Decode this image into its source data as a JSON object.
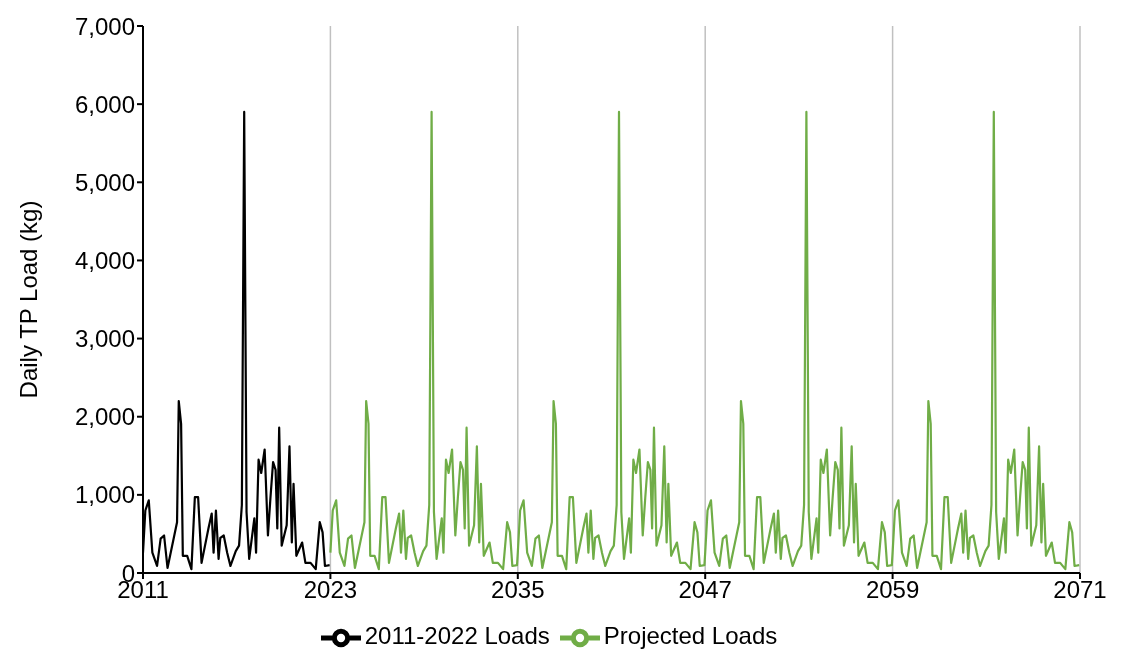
{
  "chart_data": {
    "type": "line",
    "ylabel": "Daily TP Load (kg)",
    "xlim": [
      2011,
      2071
    ],
    "xticks": [
      2011,
      2023,
      2035,
      2047,
      2059,
      2071
    ],
    "ylim": [
      0,
      7000
    ],
    "yticks": [
      0,
      {
        "value": 1000,
        "label": "1,000"
      },
      {
        "value": 2000,
        "label": "2,000"
      },
      {
        "value": 3000,
        "label": "3,000"
      },
      {
        "value": 4000,
        "label": "4,000"
      },
      {
        "value": 5000,
        "label": "5,000"
      },
      {
        "value": 6000,
        "label": "6,000"
      },
      {
        "value": 7000,
        "label": "7,000"
      }
    ],
    "grid": "x",
    "legend": "bottom",
    "marker": "none",
    "line_style": "solid",
    "series": [
      {
        "name": "2011-2022 Loads",
        "color": "#000000",
        "x": [
          2011.0,
          2011.15,
          2011.37,
          2011.6,
          2011.9,
          2012.13,
          2012.35,
          2012.57,
          2013.18,
          2013.29,
          2013.44,
          2013.55,
          2013.83,
          2014.1,
          2014.32,
          2014.53,
          2014.75,
          2015.19,
          2015.4,
          2015.52,
          2015.67,
          2015.84,
          2015.95,
          2016.17,
          2016.39,
          2016.6,
          2016.94,
          2017.15,
          2017.33,
          2017.48,
          2017.63,
          2017.8,
          2018.13,
          2018.24,
          2018.4,
          2018.57,
          2018.79,
          2019.0,
          2019.16,
          2019.33,
          2019.49,
          2019.6,
          2019.72,
          2019.88,
          2020.2,
          2020.38,
          2020.53,
          2020.64,
          2020.82,
          2021.19,
          2021.4,
          2021.73,
          2022.06,
          2022.32,
          2022.5,
          2022.65,
          2022.95
        ],
        "values": [
          260,
          800,
          930,
          260,
          90,
          440,
          480,
          65,
          650,
          2200,
          1910,
          220,
          220,
          50,
          970,
          970,
          130,
          570,
          760,
          260,
          800,
          180,
          450,
          480,
          260,
          90,
          280,
          350,
          870,
          5900,
          780,
          180,
          700,
          260,
          1450,
          1280,
          1580,
          480,
          960,
          1420,
          1320,
          570,
          1860,
          350,
          610,
          1620,
          390,
          1140,
          220,
          390,
          130,
          130,
          50,
          650,
          520,
          90,
          100
        ]
      },
      {
        "name": "Projected Loads",
        "color": "#70ad47",
        "x": [
          2023.0,
          2023.15,
          2023.37,
          2023.6,
          2023.9,
          2024.13,
          2024.35,
          2024.57,
          2025.18,
          2025.29,
          2025.44,
          2025.55,
          2025.83,
          2026.1,
          2026.32,
          2026.53,
          2026.75,
          2027.19,
          2027.4,
          2027.52,
          2027.67,
          2027.84,
          2027.95,
          2028.17,
          2028.39,
          2028.6,
          2028.94,
          2029.15,
          2029.33,
          2029.48,
          2029.63,
          2029.8,
          2030.13,
          2030.24,
          2030.4,
          2030.57,
          2030.79,
          2031.0,
          2031.16,
          2031.33,
          2031.49,
          2031.6,
          2031.72,
          2031.88,
          2032.2,
          2032.38,
          2032.53,
          2032.64,
          2032.82,
          2033.19,
          2033.4,
          2033.73,
          2034.06,
          2034.32,
          2034.5,
          2034.65,
          2034.95,
          2035.0,
          2035.15,
          2035.37,
          2035.6,
          2035.9,
          2036.13,
          2036.35,
          2036.57,
          2037.18,
          2037.29,
          2037.44,
          2037.55,
          2037.83,
          2038.1,
          2038.32,
          2038.53,
          2038.75,
          2039.19,
          2039.4,
          2039.52,
          2039.67,
          2039.84,
          2039.95,
          2040.17,
          2040.39,
          2040.6,
          2040.94,
          2041.15,
          2041.33,
          2041.48,
          2041.63,
          2041.8,
          2042.13,
          2042.24,
          2042.4,
          2042.57,
          2042.79,
          2043.0,
          2043.16,
          2043.33,
          2043.49,
          2043.6,
          2043.72,
          2043.88,
          2044.2,
          2044.38,
          2044.53,
          2044.64,
          2044.82,
          2045.19,
          2045.4,
          2045.73,
          2046.06,
          2046.32,
          2046.5,
          2046.65,
          2046.95,
          2047.0,
          2047.15,
          2047.37,
          2047.6,
          2047.9,
          2048.13,
          2048.35,
          2048.57,
          2049.18,
          2049.29,
          2049.44,
          2049.55,
          2049.83,
          2050.1,
          2050.32,
          2050.53,
          2050.75,
          2051.19,
          2051.4,
          2051.52,
          2051.67,
          2051.84,
          2051.95,
          2052.17,
          2052.39,
          2052.6,
          2052.94,
          2053.15,
          2053.33,
          2053.48,
          2053.63,
          2053.8,
          2054.13,
          2054.24,
          2054.4,
          2054.57,
          2054.79,
          2055.0,
          2055.16,
          2055.33,
          2055.49,
          2055.6,
          2055.72,
          2055.88,
          2056.2,
          2056.38,
          2056.53,
          2056.64,
          2056.82,
          2057.19,
          2057.4,
          2057.73,
          2058.06,
          2058.32,
          2058.5,
          2058.65,
          2058.95,
          2059.0,
          2059.15,
          2059.37,
          2059.6,
          2059.9,
          2060.13,
          2060.35,
          2060.57,
          2061.18,
          2061.29,
          2061.44,
          2061.55,
          2061.83,
          2062.1,
          2062.32,
          2062.53,
          2062.75,
          2063.19,
          2063.4,
          2063.52,
          2063.67,
          2063.84,
          2063.95,
          2064.17,
          2064.39,
          2064.6,
          2064.94,
          2065.15,
          2065.33,
          2065.48,
          2065.63,
          2065.8,
          2066.13,
          2066.24,
          2066.4,
          2066.57,
          2066.79,
          2067.0,
          2067.16,
          2067.33,
          2067.49,
          2067.6,
          2067.72,
          2067.88,
          2068.2,
          2068.38,
          2068.53,
          2068.64,
          2068.82,
          2069.19,
          2069.4,
          2069.73,
          2070.06,
          2070.32,
          2070.5,
          2070.65,
          2070.95
        ],
        "values": [
          260,
          800,
          930,
          260,
          90,
          440,
          480,
          65,
          650,
          2200,
          1910,
          220,
          220,
          50,
          970,
          970,
          130,
          570,
          760,
          260,
          800,
          180,
          450,
          480,
          260,
          90,
          280,
          350,
          870,
          5900,
          780,
          180,
          700,
          260,
          1450,
          1280,
          1580,
          480,
          960,
          1420,
          1320,
          570,
          1860,
          350,
          610,
          1620,
          390,
          1140,
          220,
          390,
          130,
          130,
          50,
          650,
          520,
          90,
          100,
          260,
          800,
          930,
          260,
          90,
          440,
          480,
          65,
          650,
          2200,
          1910,
          220,
          220,
          50,
          970,
          970,
          130,
          570,
          760,
          260,
          800,
          180,
          450,
          480,
          260,
          90,
          280,
          350,
          870,
          5900,
          780,
          180,
          700,
          260,
          1450,
          1280,
          1580,
          480,
          960,
          1420,
          1320,
          570,
          1860,
          350,
          610,
          1620,
          390,
          1140,
          220,
          390,
          130,
          130,
          50,
          650,
          520,
          90,
          100,
          260,
          800,
          930,
          260,
          90,
          440,
          480,
          65,
          650,
          2200,
          1910,
          220,
          220,
          50,
          970,
          970,
          130,
          570,
          760,
          260,
          800,
          180,
          450,
          480,
          260,
          90,
          280,
          350,
          870,
          5900,
          780,
          180,
          700,
          260,
          1450,
          1280,
          1580,
          480,
          960,
          1420,
          1320,
          570,
          1860,
          350,
          610,
          1620,
          390,
          1140,
          220,
          390,
          130,
          130,
          50,
          650,
          520,
          90,
          100,
          260,
          800,
          930,
          260,
          90,
          440,
          480,
          65,
          650,
          2200,
          1910,
          220,
          220,
          50,
          970,
          970,
          130,
          570,
          760,
          260,
          800,
          180,
          450,
          480,
          260,
          90,
          280,
          350,
          870,
          5900,
          780,
          180,
          700,
          260,
          1450,
          1280,
          1580,
          480,
          960,
          1420,
          1320,
          570,
          1860,
          350,
          610,
          1620,
          390,
          1140,
          220,
          390,
          130,
          130,
          50,
          650,
          520,
          90,
          100
        ]
      }
    ]
  }
}
